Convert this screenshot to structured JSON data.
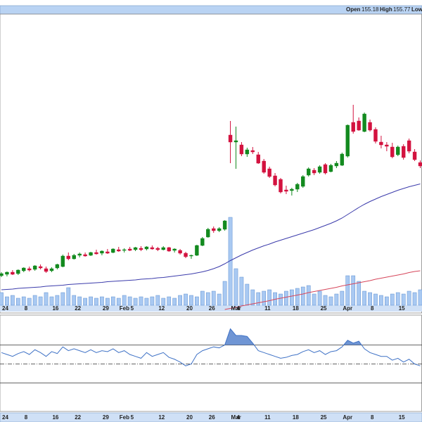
{
  "chart_data": {
    "type": "candlestick",
    "quote_labels": [
      "Open",
      "High",
      "Low"
    ],
    "categories": [
      "24",
      null,
      null,
      null,
      "8",
      null,
      null,
      null,
      null,
      "16",
      null,
      null,
      null,
      "22",
      null,
      null,
      null,
      null,
      "29",
      null,
      null,
      "Feb",
      null,
      "5",
      null,
      null,
      null,
      null,
      "12",
      null,
      null,
      null,
      null,
      "20",
      null,
      null,
      null,
      "26",
      null,
      null,
      null,
      "Mar",
      "4",
      null,
      null,
      null,
      null,
      "11",
      null,
      null,
      null,
      null,
      "18",
      null,
      null,
      null,
      null,
      "25",
      null,
      null,
      null,
      "Apr",
      null,
      null,
      null,
      null,
      "8",
      null,
      null,
      null,
      null,
      "15",
      null,
      null,
      null,
      null
    ],
    "open": [
      123.0,
      123.4,
      124.0,
      123.6,
      124.4,
      125.0,
      124.8,
      125.6,
      125.0,
      124.4,
      125.2,
      125.6,
      128.6,
      127.8,
      128.8,
      129.0,
      128.8,
      129.6,
      129.4,
      129.8,
      129.6,
      130.4,
      130.2,
      130.6,
      130.4,
      130.8,
      130.6,
      131.0,
      130.8,
      130.4,
      131.0,
      130.2,
      130.2,
      129.4,
      128.6,
      128.8,
      131.6,
      134.0,
      136.4,
      135.8,
      136.2,
      163.0,
      161.0,
      160.2,
      157.6,
      158.6,
      157.4,
      155.6,
      153.4,
      151.4,
      150.4,
      147.4,
      147.2,
      147.6,
      148.4,
      151.6,
      153.0,
      152.4,
      154.6,
      152.6,
      154.2,
      154.4,
      157.0,
      166.6,
      167.0,
      164.0,
      166.6,
      164.6,
      161.0,
      160.2,
      159.6,
      157.4,
      159.8,
      161.4,
      158.2,
      155.18
    ],
    "high": [
      124.0,
      124.2,
      124.6,
      124.8,
      125.4,
      125.6,
      126.0,
      126.2,
      125.6,
      125.4,
      126.4,
      129.0,
      129.6,
      129.2,
      129.6,
      129.6,
      129.8,
      130.4,
      130.2,
      130.6,
      130.8,
      131.2,
      130.8,
      131.2,
      131.2,
      131.4,
      131.4,
      131.6,
      131.2,
      131.4,
      131.2,
      130.8,
      130.6,
      129.8,
      129.0,
      131.8,
      134.0,
      136.6,
      137.0,
      136.8,
      138.8,
      167.0,
      165.4,
      161.0,
      159.4,
      159.6,
      158.2,
      156.2,
      154.0,
      152.2,
      150.8,
      148.6,
      148.0,
      149.4,
      151.6,
      153.8,
      153.6,
      154.4,
      155.0,
      154.8,
      155.6,
      158.0,
      166.0,
      171.6,
      168.0,
      169.4,
      167.4,
      165.2,
      162.8,
      161.0,
      160.8,
      160.0,
      160.4,
      162.0,
      159.0,
      155.77
    ],
    "low": [
      122.6,
      122.8,
      123.2,
      123.2,
      124.0,
      124.2,
      124.4,
      124.8,
      123.8,
      124.0,
      124.8,
      125.4,
      127.4,
      127.6,
      128.2,
      128.4,
      128.6,
      129.0,
      128.8,
      129.2,
      129.4,
      129.8,
      129.6,
      130.0,
      130.0,
      130.0,
      130.2,
      130.4,
      130.0,
      130.2,
      129.8,
      129.6,
      129.0,
      128.0,
      127.8,
      128.6,
      131.4,
      133.8,
      135.2,
      135.4,
      135.8,
      155.0,
      153.4,
      157.0,
      156.8,
      157.6,
      154.8,
      152.0,
      150.8,
      148.4,
      146.4,
      146.2,
      145.8,
      146.8,
      148.0,
      151.2,
      151.6,
      152.0,
      151.8,
      152.4,
      153.6,
      154.2,
      156.6,
      163.4,
      164.2,
      163.8,
      164.0,
      160.6,
      159.2,
      158.4,
      156.4,
      157.0,
      156.0,
      157.8,
      155.6,
      153.6
    ],
    "close": [
      123.6,
      124.0,
      123.4,
      124.6,
      125.2,
      124.6,
      125.8,
      125.2,
      124.2,
      125.0,
      126.2,
      128.6,
      127.8,
      128.8,
      129.2,
      128.6,
      129.6,
      129.2,
      130.0,
      129.4,
      130.6,
      130.0,
      130.4,
      130.2,
      131.0,
      130.4,
      131.2,
      130.6,
      130.4,
      131.0,
      130.0,
      130.6,
      129.4,
      128.4,
      128.8,
      131.6,
      133.6,
      136.2,
      135.8,
      136.4,
      138.6,
      161.0,
      161.4,
      157.6,
      158.8,
      158.2,
      155.0,
      152.4,
      151.2,
      148.8,
      146.8,
      147.0,
      147.6,
      149.0,
      151.2,
      153.4,
      152.2,
      154.0,
      152.2,
      154.4,
      155.0,
      157.6,
      165.8,
      164.0,
      164.4,
      169.0,
      164.4,
      161.2,
      160.2,
      159.8,
      156.8,
      159.6,
      156.6,
      158.4,
      156.0,
      154.2
    ],
    "volume": [
      18,
      12,
      14,
      10,
      12,
      10,
      14,
      12,
      18,
      12,
      14,
      18,
      25,
      14,
      12,
      10,
      12,
      10,
      12,
      10,
      12,
      10,
      14,
      12,
      10,
      12,
      10,
      12,
      14,
      10,
      12,
      10,
      14,
      16,
      14,
      12,
      20,
      18,
      20,
      16,
      34,
      125,
      52,
      40,
      30,
      22,
      18,
      20,
      22,
      18,
      16,
      20,
      22,
      24,
      26,
      28,
      16,
      20,
      14,
      12,
      16,
      20,
      42,
      42,
      34,
      20,
      18,
      16,
      14,
      12,
      16,
      18,
      16,
      20,
      18,
      22
    ],
    "ylim": [
      112.4,
      197.4
    ],
    "up_color": "#138a1f",
    "down_color": "#d3123f",
    "volume_color": "#a9c9f2",
    "lines": [
      {
        "color": "#3b3bab",
        "values": [
          119.0,
          119.1,
          119.2,
          119.4,
          119.5,
          119.6,
          119.7,
          119.8,
          120.0,
          120.1,
          120.2,
          120.3,
          120.5,
          120.6,
          120.7,
          120.8,
          120.9,
          121.0,
          121.1,
          121.3,
          121.4,
          121.5,
          121.6,
          121.7,
          121.8,
          122.0,
          122.1,
          122.2,
          122.4,
          122.5,
          122.7,
          122.9,
          123.1,
          123.3,
          123.5,
          123.8,
          124.1,
          124.5,
          125.0,
          125.6,
          126.4,
          127.3,
          128.1,
          128.9,
          129.6,
          130.3,
          130.9,
          131.5,
          132.0,
          132.6,
          133.1,
          133.6,
          134.1,
          134.6,
          135.1,
          135.6,
          136.1,
          136.7,
          137.3,
          137.9,
          138.6,
          139.4,
          140.4,
          141.4,
          142.4,
          143.3,
          144.1,
          144.8,
          145.5,
          146.1,
          146.7,
          147.3,
          147.8,
          148.3,
          148.7,
          149.1
        ]
      },
      {
        "color": "#d6455a",
        "values": [
          null,
          null,
          null,
          null,
          null,
          null,
          null,
          null,
          null,
          null,
          null,
          null,
          null,
          null,
          null,
          null,
          null,
          null,
          null,
          null,
          null,
          null,
          null,
          null,
          null,
          null,
          null,
          null,
          null,
          null,
          null,
          null,
          null,
          null,
          null,
          null,
          null,
          null,
          null,
          null,
          113.4,
          113.7,
          114.0,
          114.4,
          114.7,
          115.0,
          115.3,
          115.6,
          115.9,
          116.3,
          116.6,
          116.9,
          117.2,
          117.5,
          117.8,
          118.2,
          118.5,
          118.8,
          119.1,
          119.4,
          119.7,
          120.1,
          120.4,
          120.7,
          121.0,
          121.3,
          121.6,
          122.0,
          122.3,
          122.6,
          122.9,
          123.2,
          123.5,
          123.9,
          124.2,
          124.4
        ]
      }
    ],
    "rsi": {
      "color": "#3f72c6",
      "ylim": [
        0,
        100
      ],
      "levels": [
        30,
        50,
        70
      ],
      "values": [
        62,
        60,
        58,
        61,
        63,
        60,
        65,
        62,
        58,
        63,
        61,
        68,
        64,
        66,
        64,
        62,
        65,
        62,
        64,
        63,
        66,
        62,
        64,
        60,
        58,
        56,
        62,
        58,
        60,
        62,
        57,
        55,
        52,
        48,
        50,
        60,
        64,
        66,
        68,
        67,
        70,
        87,
        80,
        80,
        79,
        72,
        64,
        62,
        60,
        58,
        56,
        57,
        59,
        60,
        63,
        65,
        62,
        64,
        60,
        63,
        64,
        68,
        75,
        72,
        74,
        66,
        62,
        60,
        58,
        58,
        54,
        56,
        52,
        55,
        50,
        48
      ]
    }
  }
}
